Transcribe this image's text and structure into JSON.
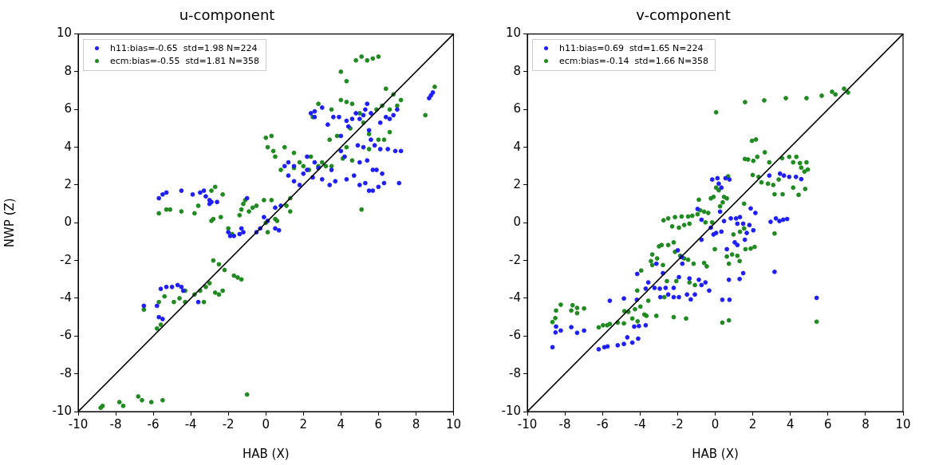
{
  "chart_data": [
    {
      "type": "scatter",
      "title": "u-component",
      "xlabel": "HAB (X)",
      "ylabel": "NWP (Z)",
      "xlim": [
        -10,
        10
      ],
      "ylim": [
        -10,
        10
      ],
      "xticks": [
        -10,
        -8,
        -6,
        -4,
        -2,
        0,
        2,
        4,
        6,
        8,
        10
      ],
      "yticks": [
        -10,
        -8,
        -6,
        -4,
        -2,
        0,
        2,
        4,
        6,
        8,
        10
      ],
      "grid": false,
      "legend": "top left",
      "marker": "circle",
      "series": [
        {
          "name": "h11:bias=-0.65  std=1.98 N=224",
          "color": "#1f1ff5",
          "x": [
            -5.7,
            -5.5,
            -5.3,
            -4.5,
            -3.9,
            -3.5,
            -3.3,
            -3.2,
            -3.0,
            -2.9,
            -2.6,
            -3.0,
            -2.0,
            -1.9,
            -1.7,
            -1.4,
            -1.3,
            -1.2,
            -0.3,
            -0.5,
            -1.0,
            -0.1,
            0.5,
            0.7,
            0.1,
            -6.5,
            -5.8,
            -5.6,
            -5.3,
            -5.0,
            -4.7,
            -4.5,
            -4.4,
            -3.6,
            -5.7,
            -5.5,
            1.0,
            1.2,
            1.5,
            1.8,
            2.0,
            2.2,
            2.5,
            2.6,
            3.0,
            3.4,
            3.7,
            4.0,
            4.3,
            4.7,
            5.0,
            5.3,
            5.5,
            5.7,
            6.0,
            6.3,
            7.1,
            5.7,
            5.9,
            6.2,
            5.4,
            4.4,
            4.6,
            4.8,
            5.0,
            5.2,
            5.5,
            5.6,
            5.8,
            6.1,
            6.5,
            6.9,
            7.2,
            5.3,
            5.4,
            6.4,
            6.6,
            2.4,
            2.6,
            3.3,
            3.6,
            3.9,
            4.3,
            5.6,
            6.1,
            6.8,
            7.0,
            8.7,
            8.9,
            8.8,
            0.5,
            0.8,
            1.2,
            1.5,
            2.8,
            2.2,
            3.5,
            4.2,
            5.0,
            2.6,
            3.0,
            4.0,
            4.9,
            5.2
          ],
          "values": [
            1.3,
            1.5,
            1.6,
            1.7,
            1.5,
            1.6,
            1.7,
            1.4,
            1.2,
            1.1,
            1.1,
            1.0,
            -0.5,
            -0.7,
            -0.7,
            -0.6,
            -0.3,
            -0.5,
            -0.3,
            -0.5,
            1.3,
            0.3,
            -0.3,
            -0.4,
            0.1,
            -4.4,
            -4.4,
            -3.5,
            -3.4,
            -3.4,
            -3.3,
            -3.4,
            -3.6,
            -4.2,
            -5.0,
            -5.1,
            3.0,
            2.5,
            2.2,
            2.0,
            2.6,
            2.8,
            2.4,
            3.2,
            2.3,
            2.0,
            2.2,
            3.8,
            2.3,
            2.5,
            2.0,
            2.1,
            1.7,
            1.7,
            1.9,
            2.1,
            2.1,
            2.8,
            2.8,
            2.6,
            3.3,
            5.1,
            5.5,
            5.8,
            5.5,
            5.7,
            4.9,
            4.4,
            4.1,
            3.9,
            3.9,
            3.8,
            3.8,
            6.0,
            6.3,
            5.6,
            5.5,
            5.8,
            5.6,
            5.2,
            5.6,
            5.6,
            5.4,
            5.8,
            5.3,
            5.7,
            6.0,
            6.6,
            6.9,
            6.75,
            0.8,
            0.9,
            3.2,
            3.0,
            2.9,
            3.5,
            2.8,
            3.5,
            3.2,
            5.9,
            6.1,
            4.6,
            4.1,
            4.0
          ]
        },
        {
          "name": "ecm:bias=-0.55  std=1.81 N=358",
          "color": "#1f8a1f",
          "x": [
            -8.8,
            -8.7,
            -7.8,
            -7.6,
            -6.8,
            -6.6,
            -6.1,
            -5.5,
            -1.0,
            -6.5,
            -5.8,
            -5.6,
            -5.7,
            -5.4,
            -4.9,
            -4.6,
            -4.3,
            -3.8,
            -3.5,
            -3.2,
            -3.0,
            -2.7,
            -2.5,
            -2.3,
            -2.8,
            -2.5,
            -2.2,
            -1.7,
            -1.5,
            -1.3,
            -4.3,
            -3.3,
            -5.7,
            -5.3,
            -5.1,
            -4.5,
            -3.8,
            -3.6,
            -2.7,
            -2.9,
            -2.8,
            -2.9,
            -2.4,
            -2.3,
            -2.0,
            -1.8,
            -1.4,
            -1.3,
            -1.2,
            -1.1,
            -0.9,
            -0.7,
            -0.5,
            -0.1,
            0.3,
            0.0,
            0.1,
            0.6,
            1.1,
            1.3,
            0.5,
            1.3,
            0.0,
            0.3,
            0.1,
            0.4,
            0.5,
            0.8,
            1.0,
            1.5,
            2.0,
            2.3,
            2.8,
            3.0,
            3.2,
            3.5,
            4.1,
            4.3,
            4.6,
            5.1,
            5.5,
            6.0,
            6.3,
            6.6,
            3.4,
            3.8,
            2.5,
            2.8,
            3.5,
            4.0,
            4.3,
            4.6,
            5.0,
            5.2,
            5.5,
            4.5,
            4.8,
            5.1,
            5.4,
            5.7,
            6.0,
            4.0,
            4.3,
            6.4,
            6.8,
            7.2,
            8.5,
            9.0,
            1.8,
            2.4,
            1.5,
            5.9,
            6.2,
            6.6,
            7.0
          ],
          "values": [
            -9.8,
            -9.7,
            -9.5,
            -9.7,
            -9.2,
            -9.4,
            -9.5,
            -9.4,
            -9.1,
            -4.6,
            -5.6,
            -5.4,
            -4.2,
            -3.9,
            -4.2,
            -4.0,
            -3.6,
            -3.8,
            -3.6,
            -3.4,
            -3.2,
            -3.7,
            -3.8,
            -3.6,
            -2.0,
            -2.2,
            -2.5,
            -2.8,
            -2.9,
            -3.0,
            -4.2,
            -4.2,
            0.5,
            0.7,
            0.7,
            0.6,
            0.5,
            0.9,
            1.9,
            1.7,
            0.2,
            0.1,
            0.3,
            1.5,
            -0.3,
            -0.6,
            0.4,
            0.7,
            1.0,
            1.2,
            0.6,
            0.8,
            0.9,
            1.2,
            1.2,
            0.0,
            -0.5,
            0.1,
            0.9,
            1.3,
            0.2,
            0.6,
            4.5,
            4.6,
            4.0,
            3.8,
            3.5,
            2.8,
            4.0,
            3.7,
            3.0,
            2.8,
            3.0,
            3.2,
            3.0,
            3.0,
            3.4,
            4.0,
            3.3,
            0.7,
            3.9,
            4.4,
            4.4,
            4.8,
            4.4,
            4.6,
            5.6,
            6.3,
            6.0,
            6.5,
            6.4,
            6.3,
            5.8,
            5.3,
            4.7,
            5.0,
            8.6,
            8.8,
            8.6,
            8.7,
            8.8,
            8.0,
            7.5,
            7.1,
            6.8,
            6.5,
            5.7,
            7.2,
            3.2,
            3.5,
            2.9,
            6.0,
            6.2,
            6.0,
            6.2
          ]
        },
        {
          "type": "line",
          "color": "#000000",
          "marker": "none",
          "x": [
            -10,
            10
          ],
          "values": [
            -10,
            10
          ]
        }
      ]
    },
    {
      "type": "scatter",
      "title": "v-component",
      "xlabel": "HAB (X)",
      "xlim": [
        -10,
        10
      ],
      "ylim": [
        -10,
        10
      ],
      "xticks": [
        -10,
        -8,
        -6,
        -4,
        -2,
        0,
        2,
        4,
        6,
        8,
        10
      ],
      "yticks": [
        -10,
        -8,
        -6,
        -4,
        -2,
        0,
        2,
        4,
        6,
        8,
        10
      ],
      "grid": false,
      "legend": "top left",
      "marker": "circle",
      "series": [
        {
          "name": "h11:bias=0.69  std=1.65 N=224",
          "color": "#1f1ff5",
          "x": [
            -8.66,
            -8.47,
            -8.5,
            -8.22,
            -7.66,
            -7.35,
            -6.98,
            -6.2,
            -5.9,
            -5.73,
            -5.61,
            -5.19,
            -4.86,
            -4.86,
            -4.68,
            -4.41,
            -4.31,
            -4.1,
            -4.17,
            -4.06,
            -3.7,
            -4.15,
            -3.7,
            -3.56,
            -3.23,
            -3.13,
            -2.95,
            -2.92,
            -2.78,
            -2.64,
            -2.5,
            -2.21,
            -2.21,
            -1.93,
            -1.75,
            -1.93,
            -1.5,
            -1.3,
            -1.08,
            -1.37,
            -0.87,
            -0.52,
            -0.32,
            -0.73,
            -1.99,
            -1.79,
            -0.94,
            -0.73,
            -0.73,
            -0.23,
            -0.09,
            0.05,
            0.33,
            -0.16,
            0.12,
            0.19,
            0.33,
            0.76,
            0.55,
            0.26,
            0.47,
            0.83,
            1.11,
            1.32,
            1.18,
            1.49,
            1.82,
            2.03,
            1.68,
            1.04,
            1.18,
            1.58,
            1.89,
            2.14,
            0.62,
            0.38,
            0.76,
            0.73,
            1.3,
            1.49,
            3.16,
            5.4,
            2.88,
            2.95,
            3.23,
            3.42,
            3.62,
            3.83,
            3.45,
            3.66,
            3.94,
            4.3,
            4.58
          ],
          "values": [
            -6.59,
            -5.5,
            -5.81,
            -5.71,
            -5.53,
            -5.83,
            -5.71,
            -6.7,
            -6.59,
            -6.55,
            -4.13,
            -6.49,
            -6.42,
            -4.01,
            -6.07,
            -6.35,
            -5.5,
            -6.14,
            -4.08,
            -5.47,
            -5.43,
            -2.71,
            -3.49,
            -3.16,
            -3.45,
            -2.17,
            -3.49,
            -3.94,
            -2.67,
            -3.45,
            -3.8,
            -3.94,
            -3.45,
            -3.94,
            -2.17,
            -2.88,
            -3.8,
            -4.06,
            -3.8,
            -2.95,
            -3.02,
            -3.16,
            -3.59,
            -3.3,
            -1.46,
            -1.82,
            0.73,
            0.16,
            -0.9,
            -0.26,
            -0.62,
            -0.54,
            -0.47,
            2.29,
            2.36,
            2.07,
            1.86,
            2.29,
            2.36,
            0.59,
            0.09,
            0.23,
            0.23,
            0.3,
            -0.05,
            -0.05,
            -0.12,
            -0.4,
            -0.54,
            -1.04,
            -1.18,
            -0.9,
            0.76,
            0.52,
            -1.4,
            -4.08,
            -4.08,
            -3.02,
            -2.98,
            -2.67,
            -2.6,
            -3.98,
            2.5,
            0.05,
            0.23,
            0.09,
            0.16,
            0.2,
            2.6,
            2.5,
            2.43,
            2.43,
            2.31
          ]
        },
        {
          "name": "ecm:bias=-0.14  std=1.66 N=358",
          "color": "#1f8a1f",
          "x": [
            -8.66,
            -8.51,
            -8.47,
            -8.22,
            -7.66,
            -7.59,
            -7.35,
            -7.35,
            -6.98,
            -6.2,
            -5.97,
            -5.75,
            -5.61,
            -5.19,
            -4.86,
            -4.83,
            -4.62,
            -4.41,
            -4.27,
            -4.13,
            -3.98,
            -4.15,
            -3.94,
            -3.77,
            -3.66,
            -3.56,
            -3.42,
            -3.35,
            -3.35,
            -3.13,
            -3.09,
            -2.99,
            -2.85,
            -2.78,
            -2.71,
            -2.57,
            -2.5,
            -2.21,
            -2.21,
            -2.14,
            -2.07,
            -1.86,
            -1.65,
            -1.55,
            -1.44,
            -1.37,
            -1.08,
            -1.15,
            -0.59,
            -0.45,
            -2.75,
            -2.5,
            -2.14,
            -1.79,
            -1.44,
            -1.22,
            -2.29,
            -1.93,
            -1.65,
            -1.37,
            -0.94,
            -0.87,
            -0.8,
            -0.59,
            -0.37,
            -0.52,
            -0.16,
            -0.23,
            -0.09,
            0.05,
            0.19,
            0.26,
            0.4,
            0.47,
            0.62,
            0.69,
            -0.02,
            0.05,
            0.38,
            0.73,
            0.62,
            0.73,
            0.9,
            0.97,
            1.18,
            1.3,
            1.32,
            1.54,
            1.54,
            1.61,
            1.89,
            2.1,
            1.75,
            1.96,
            2.17,
            1.58,
            2.03,
            2.24,
            2.64,
            2.0,
            2.31,
            2.46,
            2.81,
            3.09,
            2.88,
            3.16,
            3.16,
            3.38,
            3.59,
            3.56,
            3.94,
            4.15,
            4.32,
            4.51,
            4.58,
            4.75,
            4.86,
            4.93,
            4.15,
            4.44,
            4.79,
            5.4,
            1.59,
            2.61,
            3.76,
            4.86,
            5.67,
            6.22,
            6.4,
            6.86,
            7.07
          ],
          "values": [
            -5.26,
            -5.05,
            -4.65,
            -4.34,
            -4.65,
            -4.37,
            -4.51,
            -4.79,
            -4.54,
            -5.54,
            -5.43,
            -5.43,
            -5.36,
            -5.29,
            -5.33,
            -4.68,
            -4.72,
            -5.07,
            -4.58,
            -5.22,
            -4.44,
            -3.59,
            -2.53,
            -4.86,
            -4.93,
            -4.13,
            -2.03,
            -2.24,
            -1.68,
            -4.93,
            -1.89,
            -1.25,
            -1.18,
            -2.24,
            -3.94,
            -3.09,
            -1.18,
            -1.04,
            -5.0,
            -1.54,
            -3.09,
            -1.75,
            -1.89,
            -5.07,
            -1.96,
            -3.16,
            -3.3,
            -2.17,
            -2.13,
            -2.31,
            0.13,
            0.23,
            0.3,
            0.33,
            0.33,
            0.37,
            -0.19,
            -0.26,
            -0.12,
            -0.05,
            0.45,
            1.22,
            0.66,
            0.59,
            0.52,
            0.02,
            0.02,
            1.29,
            1.37,
            1.86,
            1.72,
            0.87,
            1.08,
            1.37,
            1.29,
            2.46,
            -1.4,
            5.85,
            -5.29,
            -5.17,
            -1.79,
            -2.17,
            -1.68,
            -0.62,
            -1.75,
            -2.03,
            -0.48,
            -0.3,
            1.01,
            -1.4,
            -1.37,
            -1.28,
            3.35,
            4.34,
            4.41,
            3.38,
            3.28,
            3.49,
            3.73,
            2.53,
            2.43,
            2.14,
            2.07,
            2.0,
            3.2,
            1.51,
            -0.57,
            2.29,
            1.51,
            3.42,
            3.49,
            3.2,
            3.49,
            3.16,
            2.92,
            2.71,
            3.2,
            2.82,
            1.86,
            1.48,
            1.79,
            -5.24,
            6.39,
            6.48,
            6.6,
            6.6,
            6.73,
            6.94,
            6.8,
            7.1,
            6.9
          ]
        },
        {
          "type": "line",
          "color": "#000000",
          "marker": "none",
          "x": [
            -10,
            10
          ],
          "values": [
            -10,
            10
          ]
        }
      ]
    }
  ]
}
